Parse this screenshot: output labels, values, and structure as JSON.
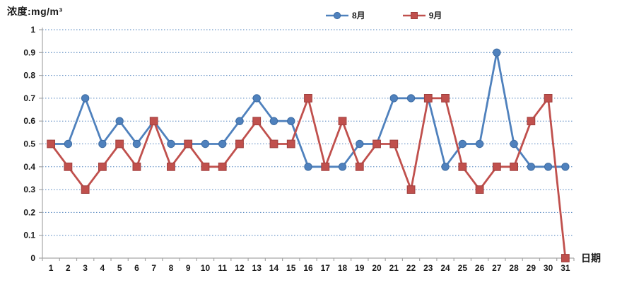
{
  "chart_data": {
    "type": "line",
    "title": "浓度:mg/m³",
    "xlabel": "日期",
    "ylabel": "浓度:mg/m³",
    "x": [
      1,
      2,
      3,
      4,
      5,
      6,
      7,
      8,
      9,
      10,
      11,
      12,
      13,
      14,
      15,
      16,
      17,
      18,
      19,
      20,
      21,
      22,
      23,
      24,
      25,
      26,
      27,
      28,
      29,
      30,
      31
    ],
    "ylim": [
      0,
      1
    ],
    "yticks": [
      0,
      0.1,
      0.2,
      0.3,
      0.4,
      0.5,
      0.6,
      0.7,
      0.8,
      0.9,
      1
    ],
    "ytick_labels": [
      "0",
      "0.1",
      "0.2",
      "0.3",
      "0.4",
      "0.5",
      "0.6",
      "0.7",
      "0.8",
      "0.9",
      "1"
    ],
    "grid": "horizontal-dotted",
    "legend_position": "top-center",
    "series": [
      {
        "name": "8月",
        "marker": "circle",
        "color": "#4F81BD",
        "marker_edge": "#3D6CA3",
        "values": [
          0.5,
          0.5,
          0.7,
          0.5,
          0.6,
          0.5,
          0.6,
          0.5,
          0.5,
          0.5,
          0.5,
          0.6,
          0.7,
          0.6,
          0.6,
          0.4,
          0.4,
          0.4,
          0.5,
          0.5,
          0.7,
          0.7,
          0.7,
          0.4,
          0.5,
          0.5,
          0.9,
          0.5,
          0.4,
          0.4,
          0.4
        ]
      },
      {
        "name": "9月",
        "marker": "square",
        "color": "#C0504D",
        "marker_edge": "#A03F3D",
        "values": [
          0.5,
          0.4,
          0.3,
          0.4,
          0.5,
          0.4,
          0.6,
          0.4,
          0.5,
          0.4,
          0.4,
          0.5,
          0.6,
          0.5,
          0.5,
          0.7,
          0.4,
          0.6,
          0.4,
          0.5,
          0.5,
          0.3,
          0.7,
          0.7,
          0.4,
          0.3,
          0.4,
          0.4,
          0.6,
          0.7,
          0
        ]
      }
    ],
    "colors": {
      "gridline": "#4F81BD",
      "axis": "#A6A6A6",
      "text": "#1a1a1a",
      "background": "#FFFFFF"
    }
  }
}
